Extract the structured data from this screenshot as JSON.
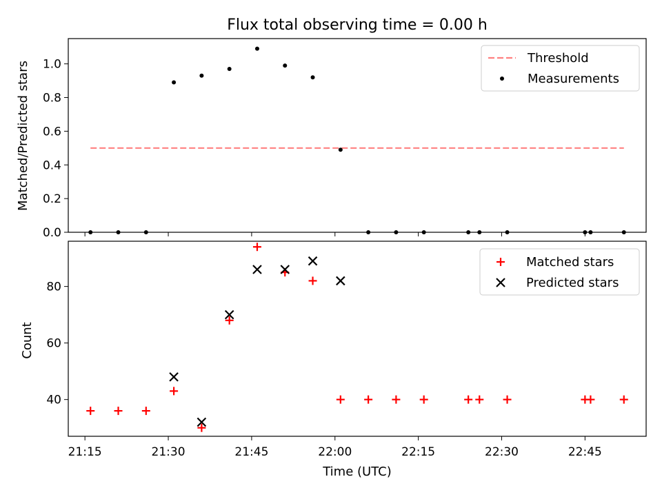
{
  "chart_data": [
    {
      "type": "scatter",
      "title": "Flux total observing time = 0.00 h",
      "xlabel": "",
      "ylabel": "Matched/Predicted stars",
      "ylim": [
        0,
        1.15
      ],
      "yticks": [
        "0.0",
        "0.2",
        "0.4",
        "0.6",
        "0.8",
        "1.0"
      ],
      "legend_position": "top-right",
      "colors": {
        "threshold": "#ff8080",
        "measurements": "#000000"
      },
      "series": [
        {
          "name": "Threshold",
          "style": "dashed-line",
          "x": [
            "21:16",
            "22:52"
          ],
          "values": [
            0.5,
            0.5
          ]
        },
        {
          "name": "Measurements",
          "style": "dot",
          "x": [
            "21:16",
            "21:21",
            "21:26",
            "21:31",
            "21:36",
            "21:41",
            "21:46",
            "21:51",
            "21:56",
            "22:01",
            "22:06",
            "22:11",
            "22:16",
            "22:24",
            "22:26",
            "22:31",
            "22:45",
            "22:46",
            "22:52"
          ],
          "values": [
            0,
            0,
            0,
            0.89,
            0.93,
            0.97,
            1.09,
            0.99,
            0.92,
            0.49,
            0,
            0,
            0,
            0,
            0,
            0,
            0,
            0,
            0
          ]
        }
      ]
    },
    {
      "type": "scatter",
      "title": "",
      "xlabel": "Time (UTC)",
      "ylabel": "Count",
      "ylim": [
        27,
        96
      ],
      "yticks": [
        "40",
        "60",
        "80"
      ],
      "xticks": [
        "21:15",
        "21:30",
        "21:45",
        "22:00",
        "22:15",
        "22:30",
        "22:45"
      ],
      "legend_position": "top-right",
      "colors": {
        "matched": "#ff0000",
        "predicted": "#000000"
      },
      "series": [
        {
          "name": "Matched stars",
          "style": "plus",
          "x": [
            "21:16",
            "21:21",
            "21:26",
            "21:31",
            "21:36",
            "21:41",
            "21:46",
            "21:51",
            "21:56",
            "22:01",
            "22:06",
            "22:11",
            "22:16",
            "22:24",
            "22:26",
            "22:31",
            "22:45",
            "22:46",
            "22:52"
          ],
          "values": [
            36,
            36,
            36,
            43,
            30,
            68,
            94,
            85,
            82,
            40,
            40,
            40,
            40,
            40,
            40,
            40,
            40,
            40,
            40
          ]
        },
        {
          "name": "Predicted stars",
          "style": "x",
          "x": [
            "21:31",
            "21:36",
            "21:41",
            "21:46",
            "21:51",
            "21:56",
            "22:01"
          ],
          "values": [
            48,
            32,
            70,
            86,
            86,
            89,
            82
          ]
        }
      ]
    }
  ]
}
